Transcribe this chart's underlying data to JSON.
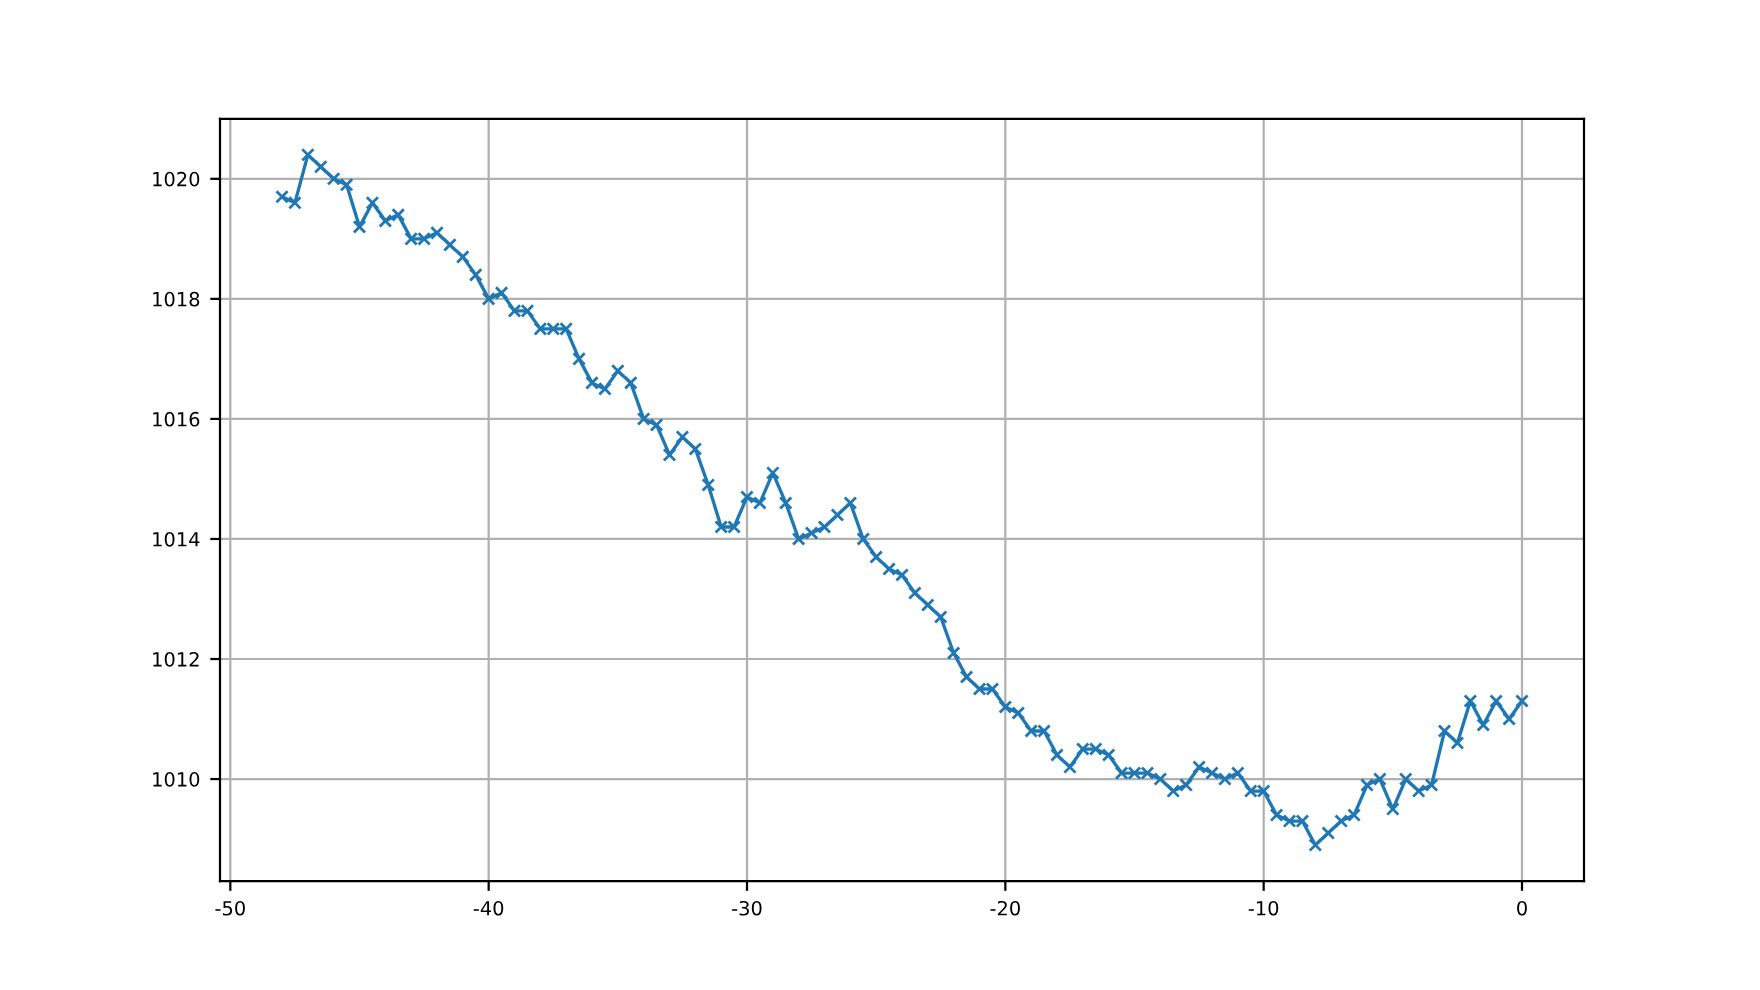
{
  "chart_data": {
    "type": "line",
    "marker": "cross",
    "grid": true,
    "x": [
      -48,
      -47.5,
      -47,
      -46.5,
      -46,
      -45.5,
      -45,
      -44.5,
      -44,
      -43.5,
      -43,
      -42.5,
      -42,
      -41.5,
      -41,
      -40.5,
      -40,
      -39.5,
      -39,
      -38.5,
      -38,
      -37.5,
      -37,
      -36.5,
      -36,
      -35.5,
      -35,
      -34.5,
      -34,
      -33.5,
      -33,
      -32.5,
      -32,
      -31.5,
      -31,
      -30.5,
      -30,
      -29.5,
      -29,
      -28.5,
      -28,
      -27.5,
      -27,
      -26.5,
      -26,
      -25.5,
      -25,
      -24.5,
      -24,
      -23.5,
      -23,
      -22.5,
      -22,
      -21.5,
      -21,
      -20.5,
      -20,
      -19.5,
      -19,
      -18.5,
      -18,
      -17.5,
      -17,
      -16.5,
      -16,
      -15.5,
      -15,
      -14.5,
      -14,
      -13.5,
      -13,
      -12.5,
      -12,
      -11.5,
      -11,
      -10.5,
      -10,
      -9.5,
      -9,
      -8.5,
      -8,
      -7.5,
      -7,
      -6.5,
      -6,
      -5.5,
      -5,
      -4.5,
      -4,
      -3.5,
      -3,
      -2.5,
      -2,
      -1.5,
      -1,
      -0.5,
      0
    ],
    "series": [
      {
        "color": "#1f77b4",
        "values": [
          1019.7,
          1019.6,
          1020.4,
          1020.2,
          1020.0,
          1019.9,
          1019.2,
          1019.6,
          1019.3,
          1019.4,
          1019.0,
          1019.0,
          1019.1,
          1018.9,
          1018.7,
          1018.4,
          1018.0,
          1018.1,
          1017.8,
          1017.8,
          1017.5,
          1017.5,
          1017.5,
          1017.0,
          1016.6,
          1016.5,
          1016.8,
          1016.6,
          1016.0,
          1015.9,
          1015.4,
          1015.7,
          1015.5,
          1014.9,
          1014.2,
          1014.2,
          1014.7,
          1014.6,
          1015.1,
          1014.6,
          1014.0,
          1014.1,
          1014.2,
          1014.4,
          1014.6,
          1014.0,
          1013.7,
          1013.5,
          1013.4,
          1013.1,
          1012.9,
          1012.7,
          1012.1,
          1011.7,
          1011.5,
          1011.5,
          1011.2,
          1011.1,
          1010.8,
          1010.8,
          1010.4,
          1010.2,
          1010.5,
          1010.5,
          1010.4,
          1010.1,
          1010.1,
          1010.1,
          1010.0,
          1009.8,
          1009.9,
          1010.2,
          1010.1,
          1010.0,
          1010.1,
          1009.8,
          1009.8,
          1009.4,
          1009.3,
          1009.3,
          1008.9,
          1009.1,
          1009.3,
          1009.4,
          1009.9,
          1010.0,
          1009.5,
          1010.0,
          1009.8,
          1009.9,
          1010.8,
          1010.6,
          1011.3,
          1010.9,
          1011.3,
          1011.0,
          1011.3
        ]
      }
    ],
    "xlim": [
      -50.4,
      2.4
    ],
    "xticks": [
      -50,
      -40,
      -30,
      -20,
      -10,
      0
    ],
    "ylim": [
      1008.3,
      1021.0
    ],
    "yticks": [
      1010,
      1012,
      1014,
      1016,
      1018,
      1020
    ]
  }
}
